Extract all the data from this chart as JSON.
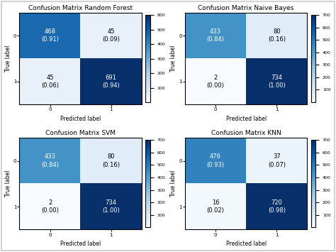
{
  "matrices": [
    {
      "title": "Confusion Matrix Random Forest",
      "values": [
        [
          468,
          45
        ],
        [
          45,
          691
        ]
      ],
      "labels": [
        [
          "468\n(0.91)",
          "45\n(0.09)"
        ],
        [
          "45\n(0.06)",
          "691\n(0.94)"
        ]
      ],
      "vmin": 0,
      "vmax": 600
    },
    {
      "title": "Confusion Matrix Naive Bayes",
      "values": [
        [
          433,
          80
        ],
        [
          2,
          734
        ]
      ],
      "labels": [
        [
          "433\n(0.84)",
          "80\n(0.16)"
        ],
        [
          "2\n(0.00)",
          "734\n(1.00)"
        ]
      ],
      "vmin": 0,
      "vmax": 700
    },
    {
      "title": "Confusion Matrix SVM",
      "values": [
        [
          433,
          80
        ],
        [
          2,
          734
        ]
      ],
      "labels": [
        [
          "433\n(0.84)",
          "80\n(0.16)"
        ],
        [
          "2\n(0.00)",
          "734\n(1.00)"
        ]
      ],
      "vmin": 0,
      "vmax": 700
    },
    {
      "title": "Confusion Matrix KNN",
      "values": [
        [
          476,
          37
        ],
        [
          16,
          720
        ]
      ],
      "labels": [
        [
          "476\n(0.93)",
          "37\n(0.07)"
        ],
        [
          "16\n(0.02)",
          "720\n(0.98)"
        ]
      ],
      "vmin": 0,
      "vmax": 700
    }
  ],
  "xlabel": "Predicted label",
  "ylabel": "True label",
  "tick_labels": [
    "0",
    "1"
  ],
  "cmap": "Blues",
  "title_fontsize": 6.5,
  "label_fontsize": 5.5,
  "annotation_fontsize": 6,
  "tick_fontsize": 5,
  "cbar_fontsize": 4.5,
  "text_color_light": "white",
  "text_color_dark": "black",
  "fig_bg": "#f0f0f0"
}
